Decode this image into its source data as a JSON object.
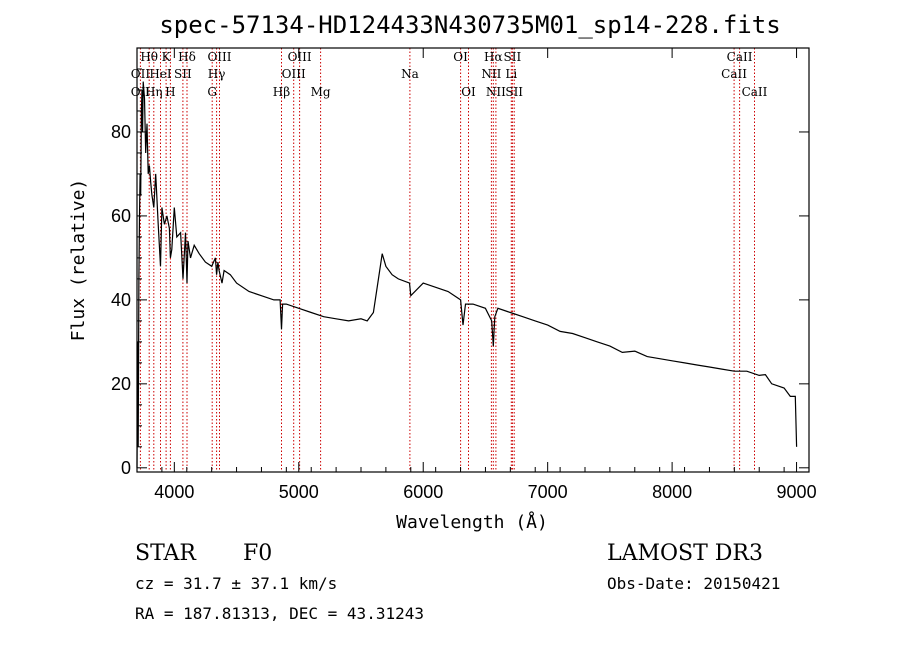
{
  "chart_data": {
    "type": "line",
    "title": "spec-57134-HD124433N430735M01_sp14-228.fits",
    "xlabel": "Wavelength (Å)",
    "ylabel": "Flux (relative)",
    "xlim": [
      3700,
      9100
    ],
    "ylim": [
      -1,
      100
    ],
    "xticks": [
      4000,
      5000,
      6000,
      7000,
      8000,
      9000
    ],
    "yticks": [
      0,
      20,
      40,
      60,
      80
    ],
    "grid": false,
    "series": [
      {
        "x": [
          3700,
          3705,
          3710,
          3715,
          3720,
          3725,
          3730,
          3735,
          3740,
          3745,
          3750,
          3760,
          3770,
          3780,
          3790,
          3800,
          3810,
          3820,
          3835,
          3850,
          3870,
          3889,
          3900,
          3920,
          3940,
          3960,
          3968,
          3980,
          4000,
          4020,
          4050,
          4070,
          4090,
          4102,
          4110,
          4130,
          4160,
          4200,
          4250,
          4300,
          4330,
          4340,
          4350,
          4360,
          4383,
          4400,
          4450,
          4500,
          4600,
          4700,
          4800,
          4850,
          4861,
          4870,
          4900,
          5000,
          5100,
          5200,
          5300,
          5400,
          5500,
          5550,
          5600,
          5650,
          5670,
          5700,
          5750,
          5800,
          5890,
          5900,
          6000,
          6100,
          6200,
          6300,
          6320,
          6340,
          6400,
          6500,
          6550,
          6563,
          6575,
          6600,
          6700,
          6800,
          6900,
          7000,
          7100,
          7200,
          7300,
          7400,
          7500,
          7600,
          7700,
          7800,
          7900,
          8000,
          8100,
          8200,
          8300,
          8400,
          8500,
          8600,
          8700,
          8750,
          8800,
          8900,
          8950,
          8990,
          9000
        ],
        "y": [
          0,
          30,
          5,
          45,
          60,
          70,
          65,
          85,
          90,
          80,
          92,
          88,
          75,
          82,
          70,
          72,
          68,
          65,
          62,
          70,
          58,
          48,
          62,
          58,
          60,
          57,
          50,
          52,
          62,
          55,
          56,
          45,
          56,
          44,
          54,
          50,
          53,
          51,
          49,
          48,
          50,
          46,
          49,
          47,
          44,
          47,
          46,
          44,
          42,
          41,
          40,
          40,
          33,
          39,
          39,
          38,
          37,
          36,
          35.5,
          35,
          35.5,
          35,
          37,
          47,
          51,
          48,
          46,
          45,
          44,
          41,
          44,
          43,
          42,
          40,
          34,
          39,
          39,
          38,
          35,
          29,
          36,
          38,
          37,
          36,
          35,
          34,
          32.5,
          32,
          31,
          30,
          29,
          27.5,
          27.8,
          26.5,
          26,
          25.5,
          25,
          24.5,
          24,
          23.5,
          23,
          23,
          22,
          22.2,
          20,
          19,
          17,
          17,
          5
        ]
      }
    ],
    "annotations": [
      {
        "label": "OII",
        "x": 3727,
        "row": 1
      },
      {
        "label": "OII",
        "x": 3727,
        "row": 2
      },
      {
        "label": "Hθ",
        "x": 3798,
        "row": 0
      },
      {
        "label": "Hη",
        "x": 3835,
        "row": 2
      },
      {
        "label": "HeI",
        "x": 3889,
        "row": 1
      },
      {
        "label": "K",
        "x": 3934,
        "row": 0
      },
      {
        "label": "SII",
        "x": 4069,
        "row": 1
      },
      {
        "label": "H",
        "x": 3968,
        "row": 2
      },
      {
        "label": "Hδ",
        "x": 4102,
        "row": 0
      },
      {
        "label": "OIII",
        "x": 4363,
        "row": 0
      },
      {
        "label": "Hγ",
        "x": 4340,
        "row": 1
      },
      {
        "label": "G",
        "x": 4304,
        "row": 2
      },
      {
        "label": "OIII",
        "x": 5007,
        "row": 0
      },
      {
        "label": "OIII",
        "x": 4959,
        "row": 1
      },
      {
        "label": "Hβ",
        "x": 4861,
        "row": 2
      },
      {
        "label": "Mg",
        "x": 5175,
        "row": 2
      },
      {
        "label": "Na",
        "x": 5893,
        "row": 1
      },
      {
        "label": "OI",
        "x": 6300,
        "row": 0
      },
      {
        "label": "OI",
        "x": 6364,
        "row": 2
      },
      {
        "label": "Hα",
        "x": 6563,
        "row": 0
      },
      {
        "label": "NII",
        "x": 6548,
        "row": 1
      },
      {
        "label": "NII",
        "x": 6584,
        "row": 2
      },
      {
        "label": "SII",
        "x": 6717,
        "row": 0
      },
      {
        "label": "Li",
        "x": 6708,
        "row": 1
      },
      {
        "label": "SII",
        "x": 6731,
        "row": 2
      },
      {
        "label": "CaII",
        "x": 8542,
        "row": 0
      },
      {
        "label": "CaII",
        "x": 8498,
        "row": 1
      },
      {
        "label": "CaII",
        "x": 8662,
        "row": 2
      }
    ],
    "line_markers": [
      3727,
      3798,
      3835,
      3889,
      3934,
      3968,
      4069,
      4102,
      4304,
      4340,
      4363,
      4861,
      4959,
      5007,
      5175,
      5893,
      6300,
      6364,
      6548,
      6563,
      6584,
      6708,
      6717,
      6731,
      8498,
      8542,
      8662
    ],
    "marker_color": "#cc0000",
    "line_color": "#000000"
  },
  "info": {
    "class_label": "STAR",
    "subclass_label": "F0",
    "survey": "LAMOST DR3",
    "cz": "cz = 31.7 ± 37.1 km/s",
    "obs_date": "Obs-Date: 20150421",
    "coords": "RA = 187.81313, DEC =  43.31243"
  }
}
